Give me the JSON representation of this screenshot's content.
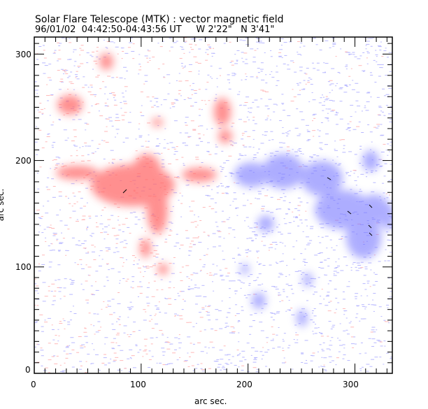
{
  "chart_data": {
    "type": "heatmap",
    "title": "Solar Flare Telescope (MTK) : vector magnetic field",
    "subtitle": "96/01/02  04:42:50-04:43:56 UT     W 2'22\"   N 3'41\"",
    "xlabel": "arc sec.",
    "ylabel": "arc sec.",
    "xlim": [
      0,
      335
    ],
    "ylim": [
      0,
      316
    ],
    "xticks": [
      "0",
      "100",
      "200",
      "300"
    ],
    "yticks": [
      "0",
      "100",
      "200",
      "300"
    ],
    "colors": {
      "positive": "#ff5a5a",
      "negative": "#6a6aff"
    }
  }
}
